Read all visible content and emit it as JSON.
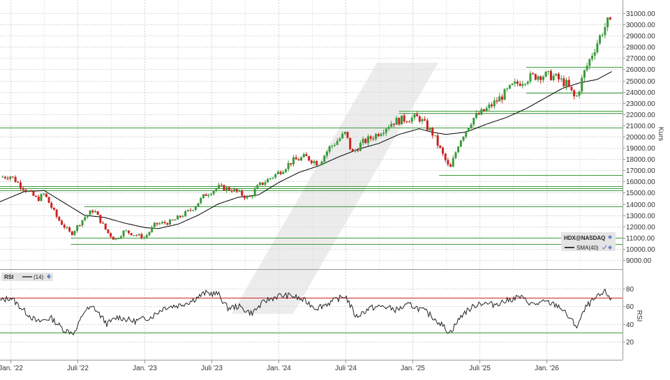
{
  "chart_data": [
    {
      "type": "candlestick",
      "title": "",
      "xlabel": "",
      "ylabel": "Kurs",
      "ylim": [
        8000,
        31500
      ],
      "grid": true,
      "y_ticks": [
        "9000.00",
        "10000.00",
        "11000.00",
        "12000.00",
        "13000.00",
        "14000.00",
        "15000.00",
        "16000.00",
        "17000.00",
        "18000.00",
        "19000.00",
        "20000.00",
        "21000.00",
        "22000.00",
        "23000.00",
        "24000.00",
        "25000.00",
        "26000.00",
        "27000.00",
        "28000.00",
        "29000.00",
        "30000.00",
        "31000.00"
      ],
      "x_ticks": [
        "Jan. '22",
        "Juli '22",
        "Jan. '23",
        "Juli '23",
        "Jan. '24",
        "Juli '24",
        "Jan. '25",
        "Juli '25",
        "Jan. '26"
      ],
      "legend_position": "bottom-right",
      "series": [
        {
          "name": "HDX@NASDAQ",
          "kind": "candlestick",
          "color_up": "#3a9a3a",
          "color_down": "#cc2222"
        },
        {
          "name": "SMA(40)",
          "kind": "line",
          "color": "#000000"
        }
      ],
      "price_path": [
        [
          2021.92,
          16400
        ],
        [
          2022.0,
          16500
        ],
        [
          2022.08,
          15600
        ],
        [
          2022.2,
          14400
        ],
        [
          2022.25,
          14900
        ],
        [
          2022.35,
          12700
        ],
        [
          2022.45,
          11300
        ],
        [
          2022.55,
          12800
        ],
        [
          2022.62,
          13500
        ],
        [
          2022.72,
          11500
        ],
        [
          2022.78,
          10800
        ],
        [
          2022.85,
          11600
        ],
        [
          2022.92,
          11300
        ],
        [
          2023.0,
          11000
        ],
        [
          2023.08,
          12200
        ],
        [
          2023.2,
          12400
        ],
        [
          2023.35,
          13500
        ],
        [
          2023.45,
          14800
        ],
        [
          2023.55,
          15500
        ],
        [
          2023.65,
          15300
        ],
        [
          2023.78,
          14500
        ],
        [
          2023.85,
          15600
        ],
        [
          2024.0,
          16800
        ],
        [
          2024.1,
          17800
        ],
        [
          2024.2,
          18200
        ],
        [
          2024.3,
          17600
        ],
        [
          2024.38,
          19000
        ],
        [
          2024.5,
          20300
        ],
        [
          2024.55,
          18500
        ],
        [
          2024.62,
          19400
        ],
        [
          2024.72,
          20100
        ],
        [
          2024.85,
          21300
        ],
        [
          2024.95,
          21600
        ],
        [
          2025.05,
          21700
        ],
        [
          2025.15,
          20300
        ],
        [
          2025.25,
          17800
        ],
        [
          2025.28,
          17000
        ],
        [
          2025.35,
          19600
        ],
        [
          2025.45,
          21600
        ],
        [
          2025.55,
          22400
        ],
        [
          2025.65,
          23400
        ],
        [
          2025.75,
          24500
        ],
        [
          2025.85,
          25200
        ],
        [
          2025.95,
          25500
        ],
        [
          2026.05,
          25400
        ],
        [
          2026.15,
          24700
        ],
        [
          2026.22,
          23300
        ],
        [
          2026.28,
          25600
        ],
        [
          2026.35,
          27600
        ],
        [
          2026.42,
          29400
        ],
        [
          2026.47,
          30400
        ],
        [
          2026.49,
          29200
        ]
      ],
      "sma_path": [
        [
          2021.92,
          14200
        ],
        [
          2022.1,
          15100
        ],
        [
          2022.25,
          15200
        ],
        [
          2022.4,
          14100
        ],
        [
          2022.55,
          13000
        ],
        [
          2022.7,
          12800
        ],
        [
          2022.85,
          12300
        ],
        [
          2023.0,
          11900
        ],
        [
          2023.1,
          11800
        ],
        [
          2023.25,
          12200
        ],
        [
          2023.4,
          13000
        ],
        [
          2023.55,
          14000
        ],
        [
          2023.7,
          14600
        ],
        [
          2023.85,
          14800
        ],
        [
          2024.0,
          15900
        ],
        [
          2024.15,
          16800
        ],
        [
          2024.3,
          17400
        ],
        [
          2024.45,
          18200
        ],
        [
          2024.6,
          18900
        ],
        [
          2024.75,
          19400
        ],
        [
          2024.9,
          20200
        ],
        [
          2025.05,
          20700
        ],
        [
          2025.15,
          20400
        ],
        [
          2025.25,
          20200
        ],
        [
          2025.4,
          20400
        ],
        [
          2025.55,
          21100
        ],
        [
          2025.7,
          21700
        ],
        [
          2025.85,
          22500
        ],
        [
          2026.0,
          23500
        ],
        [
          2026.12,
          24300
        ],
        [
          2026.25,
          24800
        ],
        [
          2026.38,
          25100
        ],
        [
          2026.49,
          25800
        ]
      ],
      "horizontal_levels": [
        {
          "value": 26200,
          "from": 2025.85
        },
        {
          "value": 23900,
          "from": 2025.85
        },
        {
          "value": 22300,
          "from": 2024.9
        },
        {
          "value": 22100,
          "from": 2024.9
        },
        {
          "value": 20800,
          "from": 2021.92
        },
        {
          "value": 16600,
          "from": 2025.2
        },
        {
          "value": 15600,
          "from": 2021.92
        },
        {
          "value": 15400,
          "from": 2021.92
        },
        {
          "value": 15200,
          "from": 2021.92
        },
        {
          "value": 13800,
          "from": 2022.55
        },
        {
          "value": 11000,
          "from": 2022.45
        },
        {
          "value": 10400,
          "from": 2022.45
        }
      ]
    },
    {
      "type": "line",
      "title": "",
      "ylabel": "RSI",
      "ylim": [
        10,
        90
      ],
      "y_ticks": [
        "20",
        "40",
        "60",
        "80"
      ],
      "legend": {
        "name": "RSI",
        "period": "(14)"
      },
      "reference_levels": [
        {
          "value": 70,
          "color": "#cc2222"
        },
        {
          "value": 30,
          "color": "#3a9a3a"
        }
      ],
      "rsi_path": [
        [
          2021.92,
          66
        ],
        [
          2022.0,
          70
        ],
        [
          2022.1,
          55
        ],
        [
          2022.2,
          42
        ],
        [
          2022.3,
          47
        ],
        [
          2022.4,
          33
        ],
        [
          2022.48,
          30
        ],
        [
          2022.55,
          55
        ],
        [
          2022.62,
          59
        ],
        [
          2022.72,
          40
        ],
        [
          2022.8,
          48
        ],
        [
          2022.92,
          43
        ],
        [
          2023.05,
          48
        ],
        [
          2023.15,
          59
        ],
        [
          2023.25,
          61
        ],
        [
          2023.35,
          66
        ],
        [
          2023.45,
          75
        ],
        [
          2023.55,
          74
        ],
        [
          2023.62,
          58
        ],
        [
          2023.7,
          60
        ],
        [
          2023.8,
          52
        ],
        [
          2023.9,
          66
        ],
        [
          2024.0,
          72
        ],
        [
          2024.1,
          72
        ],
        [
          2024.2,
          66
        ],
        [
          2024.28,
          58
        ],
        [
          2024.38,
          64
        ],
        [
          2024.5,
          72
        ],
        [
          2024.58,
          48
        ],
        [
          2024.68,
          58
        ],
        [
          2024.78,
          60
        ],
        [
          2024.88,
          56
        ],
        [
          2024.98,
          62
        ],
        [
          2025.1,
          54
        ],
        [
          2025.2,
          42
        ],
        [
          2025.28,
          30
        ],
        [
          2025.38,
          52
        ],
        [
          2025.5,
          64
        ],
        [
          2025.6,
          62
        ],
        [
          2025.7,
          66
        ],
        [
          2025.8,
          71
        ],
        [
          2025.9,
          62
        ],
        [
          2026.0,
          65
        ],
        [
          2026.1,
          60
        ],
        [
          2026.2,
          42
        ],
        [
          2026.23,
          37
        ],
        [
          2026.3,
          60
        ],
        [
          2026.38,
          70
        ],
        [
          2026.44,
          76
        ],
        [
          2026.47,
          72
        ],
        [
          2026.49,
          65
        ]
      ]
    }
  ],
  "panels": {
    "main": {
      "axis_title": "Kurs",
      "legend_symbol": "HDX@NASDAQ",
      "legend_sma": "SMA(40)"
    },
    "rsi": {
      "axis_title": "RSI",
      "legend_name": "RSI",
      "legend_period": "(14)"
    }
  },
  "colors": {
    "up": "#3a9a3a",
    "down": "#cc2222",
    "grid": "#d4d4d4",
    "level": "#3a9a3a",
    "sma": "#000000",
    "rsi": "#222222",
    "watermark": "#dcdcdc"
  },
  "icons": {
    "legend_pin": "diamond-pin-icon",
    "legend_check": "check-icon"
  }
}
